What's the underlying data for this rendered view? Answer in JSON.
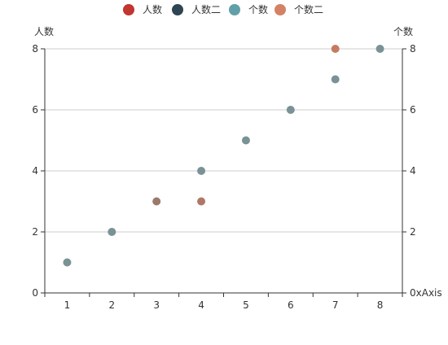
{
  "chart_data": {
    "type": "scatter",
    "legend": {
      "position": "top-center",
      "items": [
        {
          "name": "人数",
          "color": "#c23531"
        },
        {
          "name": "人数二",
          "color": "#2f4554"
        },
        {
          "name": "个数",
          "color": "#61a0a8"
        },
        {
          "name": "个数二",
          "color": "#d48265"
        }
      ]
    },
    "y_left": {
      "label": "人数",
      "min": 0,
      "max": 8,
      "ticks": [
        0,
        2,
        4,
        6,
        8
      ]
    },
    "y_right": {
      "label": "个数",
      "min": 0,
      "max": 8,
      "ticks": [
        2,
        4,
        6,
        8
      ],
      "tick_labels": {
        "0": "0xAxis"
      }
    },
    "x_axis": {
      "categories": [
        "1",
        "2",
        "3",
        "4",
        "5",
        "6",
        "7",
        "8"
      ]
    },
    "grid": true,
    "points": [
      {
        "x": "1",
        "y": 1,
        "color": "#7a9295"
      },
      {
        "x": "2",
        "y": 2,
        "color": "#7a9295"
      },
      {
        "x": "3",
        "y": 3,
        "color": "#9a7a6b"
      },
      {
        "x": "4",
        "y": 4,
        "color": "#7a9295"
      },
      {
        "x": "4",
        "y": 3,
        "color": "#ae7868"
      },
      {
        "x": "5",
        "y": 5,
        "color": "#7a9295"
      },
      {
        "x": "6",
        "y": 6,
        "color": "#7a9295"
      },
      {
        "x": "7",
        "y": 7,
        "color": "#7a9295"
      },
      {
        "x": "7",
        "y": 8,
        "color": "#c77a62"
      },
      {
        "x": "8",
        "y": 8,
        "color": "#7a9295"
      }
    ]
  }
}
